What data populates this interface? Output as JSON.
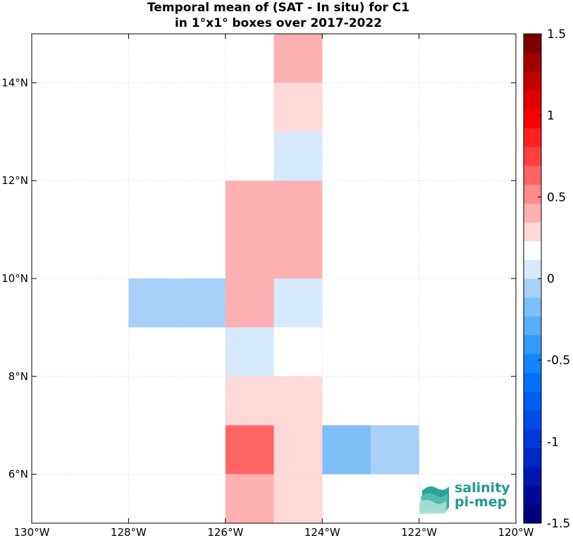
{
  "chart_data": {
    "type": "heatmap",
    "title": [
      "Temporal mean of (SAT - In situ) for C1",
      "in 1°x1° boxes over 2017-2022"
    ],
    "xlim": [
      -130,
      -120
    ],
    "ylim": [
      5,
      15
    ],
    "grid": true,
    "x_ticks": [
      -130,
      -128,
      -126,
      -124,
      -122,
      -120
    ],
    "x_tick_labels": [
      "130°W",
      "128°W",
      "126°W",
      "124°W",
      "122°W",
      "120°W"
    ],
    "y_ticks": [
      6,
      8,
      10,
      12,
      14
    ],
    "y_tick_labels": [
      "6°N",
      "8°N",
      "10°N",
      "12°N",
      "14°N"
    ],
    "cells": [
      {
        "lon": -125,
        "lat": 14,
        "value": 0.45
      },
      {
        "lon": -125,
        "lat": 13,
        "value": 0.25
      },
      {
        "lon": -125,
        "lat": 12,
        "value": 0.1
      },
      {
        "lon": -126,
        "lat": 11,
        "value": 0.35
      },
      {
        "lon": -125,
        "lat": 11,
        "value": 0.45
      },
      {
        "lon": -126,
        "lat": 10,
        "value": 0.35
      },
      {
        "lon": -125,
        "lat": 10,
        "value": 0.45
      },
      {
        "lon": -128,
        "lat": 9,
        "value": -0.1
      },
      {
        "lon": -127,
        "lat": 9,
        "value": -0.1
      },
      {
        "lon": -126,
        "lat": 9,
        "value": 0.35
      },
      {
        "lon": -125,
        "lat": 9,
        "value": 0.1
      },
      {
        "lon": -126,
        "lat": 8,
        "value": 0.1
      },
      {
        "lon": -126,
        "lat": 7,
        "value": 0.25
      },
      {
        "lon": -125,
        "lat": 7,
        "value": 0.25
      },
      {
        "lon": -126,
        "lat": 6,
        "value": 0.6
      },
      {
        "lon": -125,
        "lat": 6,
        "value": 0.25
      },
      {
        "lon": -124,
        "lat": 6,
        "value": -0.2
      },
      {
        "lon": -123,
        "lat": 6,
        "value": -0.1
      },
      {
        "lon": -126,
        "lat": 5,
        "value": 0.35
      },
      {
        "lon": -125,
        "lat": 5,
        "value": 0.25
      }
    ],
    "colorbar": {
      "range": [
        -1.5,
        1.5
      ],
      "ticks": [
        -1.5,
        -1,
        -0.5,
        0,
        0.5,
        1,
        1.5
      ],
      "tick_labels": [
        "-1.5",
        "-1",
        "-0.5",
        "0",
        "0.5",
        "1",
        "1.5"
      ]
    }
  },
  "logo": {
    "line1": "salinity",
    "line2": "pi-mep"
  }
}
